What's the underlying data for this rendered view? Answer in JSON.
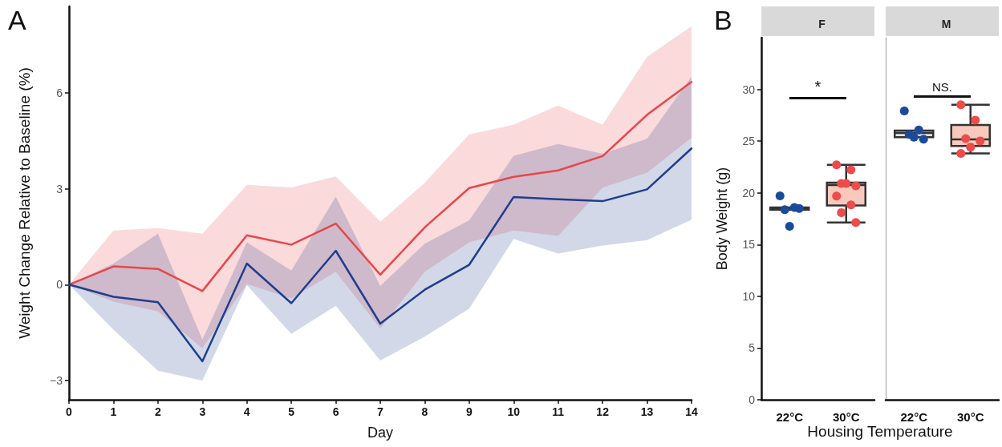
{
  "chart_data": [
    {
      "type": "line",
      "annotations": [
        "A"
      ],
      "xlabel": "Day",
      "ylabel": "Weight Change Relative to Baseline (%)",
      "x": [
        0,
        1,
        2,
        3,
        4,
        5,
        6,
        7,
        8,
        9,
        10,
        11,
        12,
        13,
        14
      ],
      "xlim": [
        0,
        14
      ],
      "xticks": [
        0,
        1,
        2,
        3,
        4,
        5,
        6,
        7,
        8,
        9,
        10,
        11,
        12,
        13,
        14
      ],
      "ylim": [
        -3.6,
        8.7
      ],
      "yticks": [
        {
          "value": -3,
          "label": "−3"
        },
        0,
        3,
        6
      ],
      "series": [
        {
          "color": "#e8464a",
          "values": [
            0,
            0.57,
            0.49,
            -0.2,
            1.54,
            1.25,
            1.91,
            0.31,
            1.79,
            3.02,
            3.37,
            3.57,
            4.02,
            5.31,
            6.34
          ],
          "lower": [
            0,
            -0.53,
            -0.84,
            -1.99,
            0.02,
            -0.44,
            0.4,
            -1.37,
            0.4,
            1.32,
            1.69,
            1.52,
            3.03,
            3.5,
            4.59
          ],
          "upper": [
            0,
            1.69,
            1.77,
            1.59,
            3.12,
            3.04,
            3.38,
            1.97,
            3.18,
            4.7,
            5.0,
            5.6,
            5.0,
            7.12,
            8.08
          ]
        },
        {
          "color": "#1f3e8e",
          "values": [
            0,
            -0.38,
            -0.55,
            -2.4,
            0.66,
            -0.58,
            1.06,
            -1.22,
            -0.16,
            0.62,
            2.74,
            2.67,
            2.61,
            2.98,
            4.26
          ],
          "lower": [
            0,
            -1.41,
            -2.69,
            -3.0,
            -0.02,
            -1.54,
            -0.66,
            -2.37,
            -1.63,
            -0.75,
            1.43,
            0.97,
            1.22,
            1.39,
            2.03
          ],
          "upper": [
            0,
            0.66,
            1.59,
            -1.72,
            1.32,
            0.44,
            2.75,
            -0.04,
            1.28,
            2.01,
            4.03,
            4.4,
            4.09,
            4.56,
            6.51
          ]
        }
      ]
    },
    {
      "type": "box",
      "title": "F",
      "annotations": [
        "B",
        "*"
      ],
      "xlabel": "Housing Temperature",
      "ylabel": "Body Weight (g)",
      "categories": [
        "22°C",
        "30°C"
      ],
      "ylim": [
        0,
        35
      ],
      "yticks": [
        0,
        5,
        10,
        15,
        20,
        25,
        30
      ],
      "series": [
        {
          "type": "box",
          "colors": [
            "#e4e4ec",
            "#f9c8bc"
          ],
          "boxes": [
            {
              "low": 18.37,
              "q1": 18.37,
              "median": 18.48,
              "q3": 18.59,
              "high": 18.59
            },
            {
              "low": 17.13,
              "q1": 18.78,
              "median": 20.76,
              "q3": 20.98,
              "high": 22.71
            }
          ]
        },
        {
          "type": "scatter",
          "color": "#1c4a9a",
          "x": [
            "22°C",
            "22°C",
            "22°C",
            "22°C",
            "22°C"
          ],
          "values": [
            19.71,
            18.59,
            18.37,
            18.48,
            16.77
          ]
        },
        {
          "type": "scatter",
          "color": "#ee4b4b",
          "x": [
            "30°C",
            "30°C",
            "30°C",
            "30°C",
            "30°C",
            "30°C",
            "30°C",
            "30°C",
            "30°C"
          ],
          "values": [
            22.71,
            22.22,
            20.9,
            20.68,
            20.9,
            19.69,
            18.83,
            18.09,
            17.13
          ]
        }
      ]
    },
    {
      "type": "box",
      "title": "M",
      "annotations": [
        "NS."
      ],
      "tick_labels": "x",
      "categories": [
        "22°C",
        "30°C"
      ],
      "ylim": [
        0,
        35
      ],
      "yticks": [
        0,
        5,
        10,
        15,
        20,
        25,
        30
      ],
      "series": [
        {
          "type": "box",
          "colors": [
            "#e4e4ec",
            "#f9c8bc"
          ],
          "boxes": [
            {
              "low": 25.38,
              "q1": 25.38,
              "median": 25.79,
              "q3": 26.01,
              "high": 26.01
            },
            {
              "low": 23.81,
              "q1": 24.53,
              "median": 25.16,
              "q3": 26.56,
              "high": 28.51
            }
          ]
        },
        {
          "type": "scatter",
          "color": "#1c4a9a",
          "x": [
            "22°C",
            "22°C",
            "22°C",
            "22°C",
            "22°C"
          ],
          "values": [
            27.91,
            26.07,
            25.65,
            25.19,
            25.38
          ]
        },
        {
          "type": "scatter",
          "color": "#ee4b4b",
          "x": [
            "30°C",
            "30°C",
            "30°C",
            "30°C",
            "30°C",
            "30°C"
          ],
          "values": [
            28.51,
            27.03,
            25.24,
            25.02,
            24.42,
            23.81
          ]
        }
      ]
    }
  ]
}
